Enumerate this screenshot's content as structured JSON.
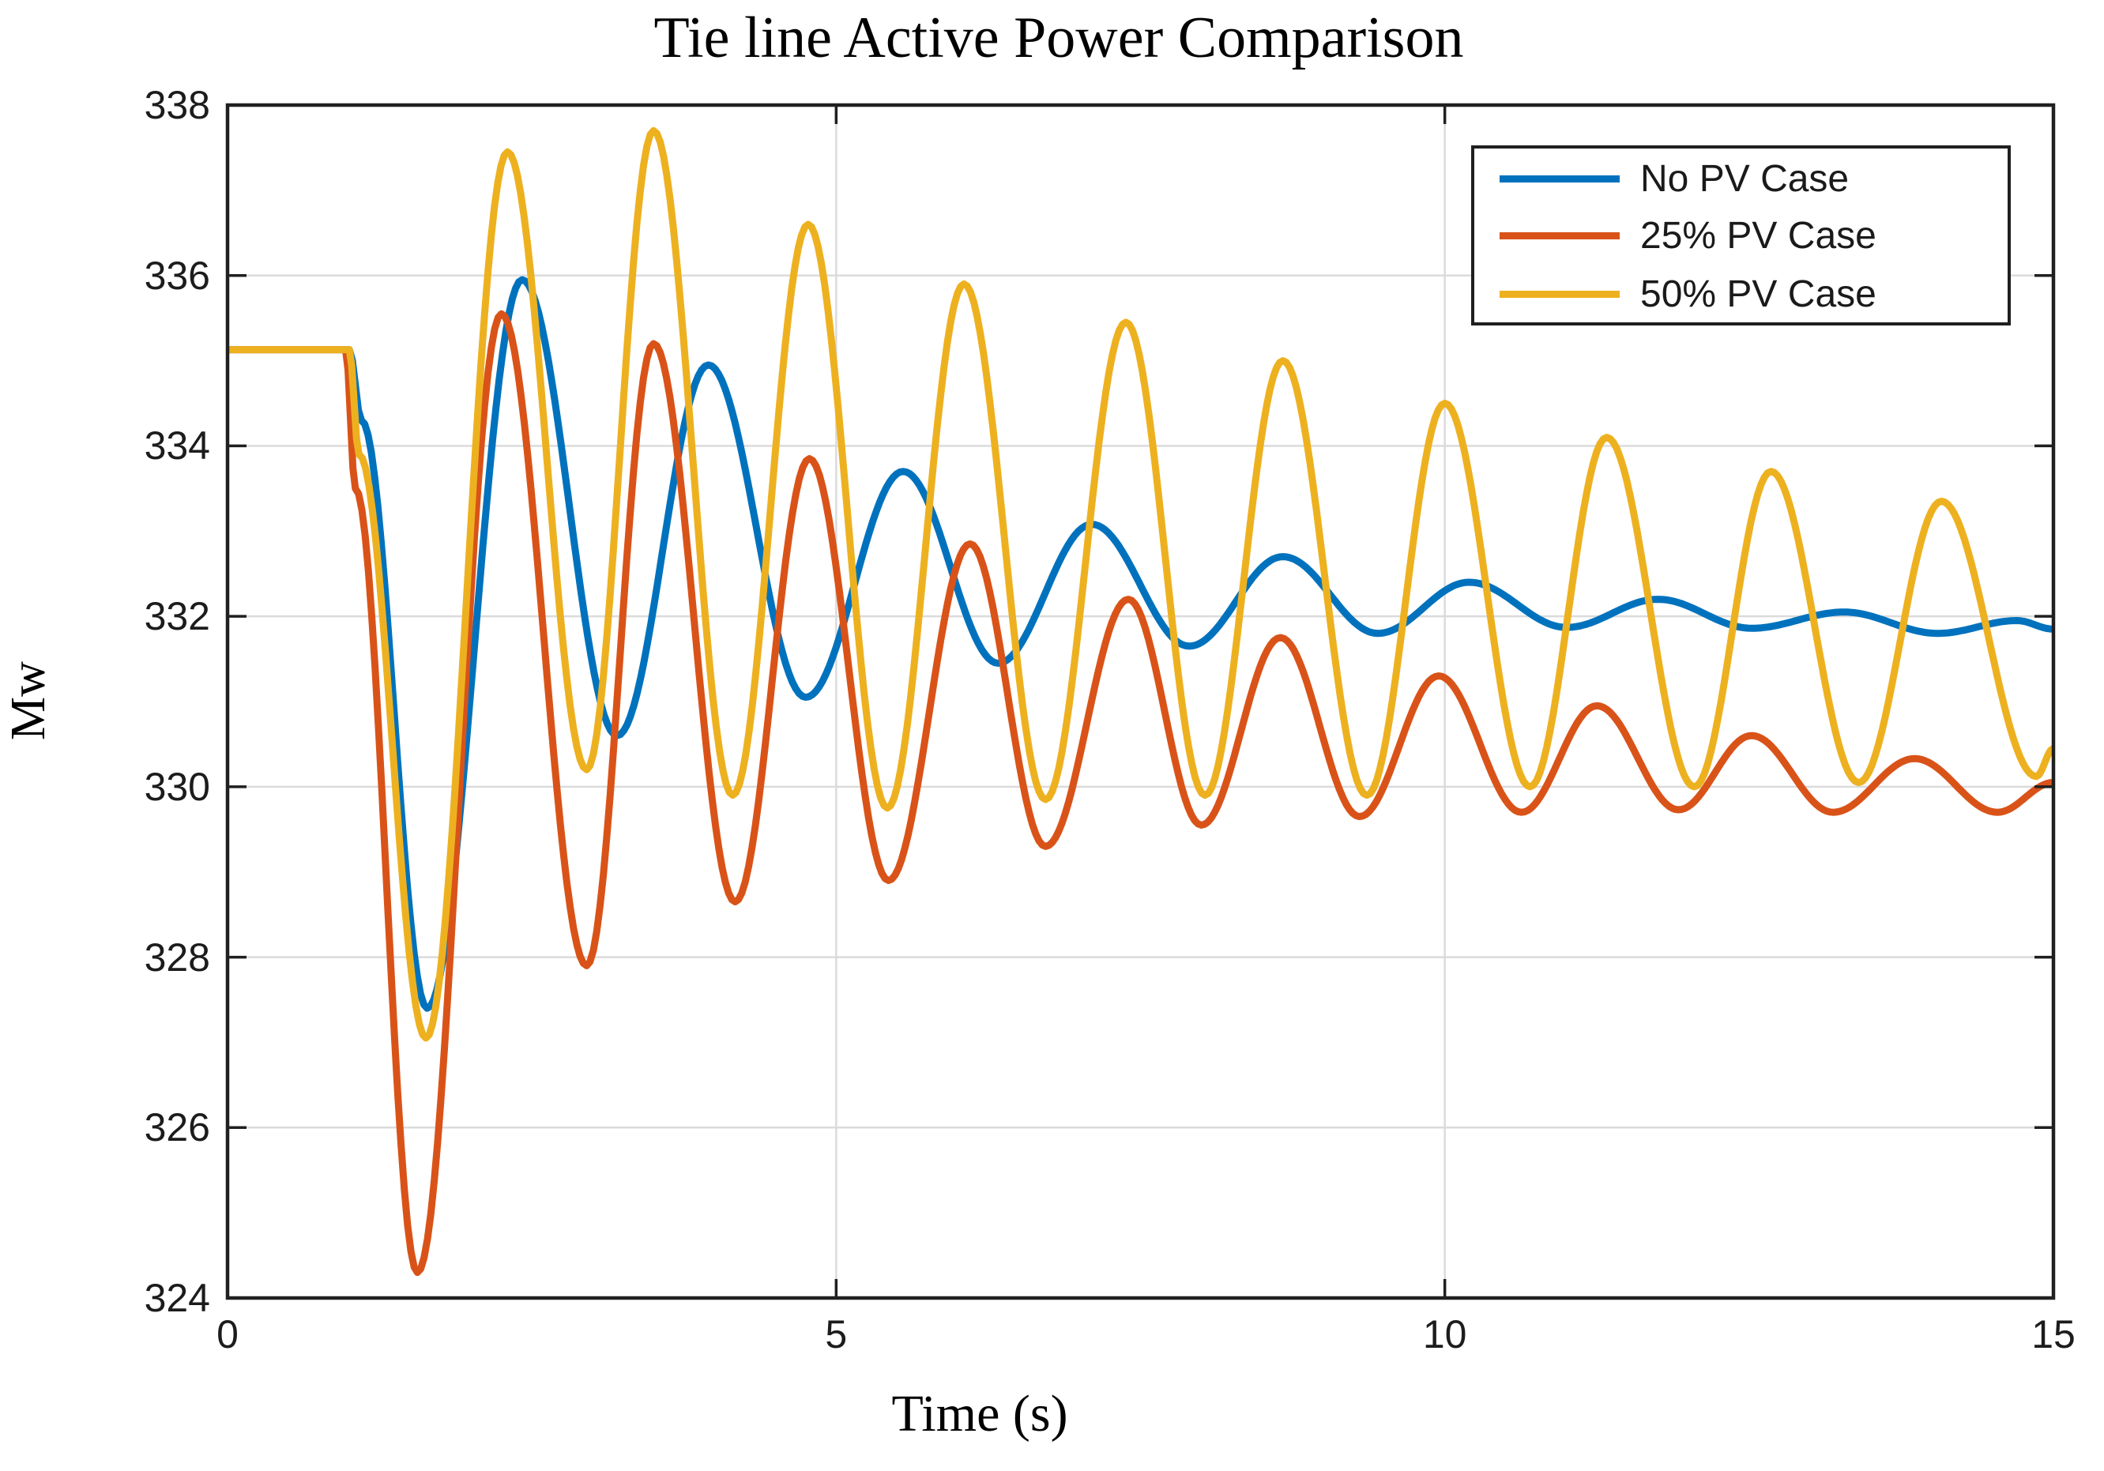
{
  "title": "Tie line Active Power Comparison",
  "axis": {
    "xlabel": "Time (s)",
    "ylabel": "Mw",
    "xlim": [
      0,
      15
    ],
    "ylim": [
      324,
      338
    ],
    "xticks": [
      0,
      5,
      10,
      15
    ],
    "yticks": [
      324,
      326,
      328,
      330,
      332,
      334,
      336,
      338
    ],
    "grid": true,
    "box": true
  },
  "colors": {
    "no_pv": "#0072BD",
    "pv25": "#D95319",
    "pv50": "#EDB120",
    "grid_line": "#DBDBDB",
    "axis_line": "#202020",
    "text": "#1a1a1a"
  },
  "legend": {
    "position": "top-right",
    "items": [
      {
        "label": "No PV Case",
        "color": "#0072BD"
      },
      {
        "label": "25% PV Case",
        "color": "#D95319"
      },
      {
        "label": "50% PV Case",
        "color": "#EDB120"
      }
    ]
  },
  "chart_data": {
    "type": "line",
    "title": "Tie line Active Power Comparison",
    "xlabel": "Time (s)",
    "ylabel": "Mw",
    "xlim": [
      0,
      15
    ],
    "ylim": [
      324,
      338
    ],
    "legend_position": "top-right",
    "interpolation": "cosine-between-extrema",
    "series": [
      {
        "name": "No PV Case",
        "color": "#0072BD",
        "points": [
          [
            0,
            335.13
          ],
          [
            1.0,
            335.13
          ],
          [
            1.1,
            334.3
          ],
          [
            1.64,
            327.4
          ],
          [
            2.42,
            335.95
          ],
          [
            3.2,
            330.6
          ],
          [
            3.95,
            334.95
          ],
          [
            4.75,
            331.05
          ],
          [
            5.55,
            333.7
          ],
          [
            6.33,
            331.45
          ],
          [
            7.1,
            333.08
          ],
          [
            7.9,
            331.65
          ],
          [
            8.67,
            332.7
          ],
          [
            9.45,
            331.8
          ],
          [
            10.2,
            332.4
          ],
          [
            11.0,
            331.87
          ],
          [
            11.75,
            332.2
          ],
          [
            12.52,
            331.86
          ],
          [
            13.28,
            332.05
          ],
          [
            14.05,
            331.8
          ],
          [
            14.7,
            331.95
          ],
          [
            15,
            331.85
          ]
        ]
      },
      {
        "name": "25% PV Case",
        "color": "#D95319",
        "points": [
          [
            0,
            335.13
          ],
          [
            0.97,
            335.13
          ],
          [
            1.05,
            333.5
          ],
          [
            1.56,
            324.3
          ],
          [
            2.25,
            335.55
          ],
          [
            2.95,
            327.9
          ],
          [
            3.5,
            335.2
          ],
          [
            4.17,
            328.65
          ],
          [
            4.78,
            333.85
          ],
          [
            5.43,
            328.9
          ],
          [
            6.1,
            332.85
          ],
          [
            6.72,
            329.3
          ],
          [
            7.4,
            332.2
          ],
          [
            8.0,
            329.55
          ],
          [
            8.65,
            331.75
          ],
          [
            9.3,
            329.65
          ],
          [
            9.95,
            331.3
          ],
          [
            10.63,
            329.7
          ],
          [
            11.25,
            330.95
          ],
          [
            11.92,
            329.73
          ],
          [
            12.52,
            330.6
          ],
          [
            13.19,
            329.7
          ],
          [
            13.86,
            330.33
          ],
          [
            14.54,
            329.7
          ],
          [
            15,
            330.05
          ]
        ]
      },
      {
        "name": "50% PV Case",
        "color": "#EDB120",
        "points": [
          [
            0,
            335.13
          ],
          [
            1.0,
            335.13
          ],
          [
            1.08,
            333.9
          ],
          [
            1.63,
            327.05
          ],
          [
            2.3,
            337.45
          ],
          [
            2.95,
            330.2
          ],
          [
            3.5,
            337.7
          ],
          [
            4.15,
            329.9
          ],
          [
            4.77,
            336.6
          ],
          [
            5.42,
            329.75
          ],
          [
            6.05,
            335.9
          ],
          [
            6.72,
            329.85
          ],
          [
            7.38,
            335.45
          ],
          [
            8.03,
            329.9
          ],
          [
            8.67,
            335.0
          ],
          [
            9.36,
            329.9
          ],
          [
            10.0,
            334.5
          ],
          [
            10.7,
            330.0
          ],
          [
            11.33,
            334.1
          ],
          [
            12.05,
            330.0
          ],
          [
            12.68,
            333.7
          ],
          [
            13.4,
            330.05
          ],
          [
            14.08,
            333.35
          ],
          [
            14.86,
            330.12
          ],
          [
            15,
            330.45
          ]
        ]
      }
    ]
  }
}
